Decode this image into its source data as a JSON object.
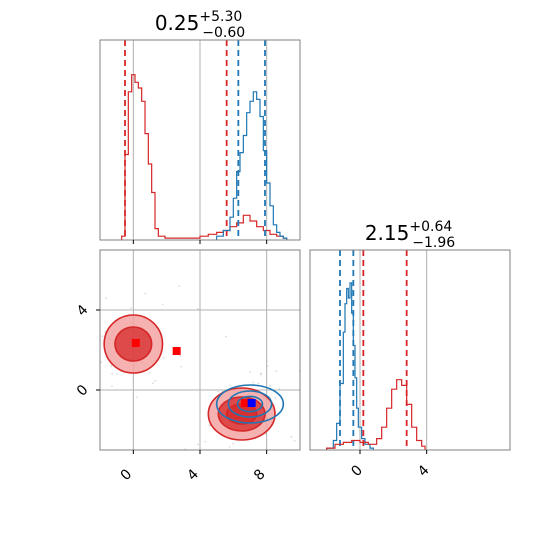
{
  "chart_data": {
    "type": "corner",
    "colors": {
      "red": "#d62728",
      "blue": "#1f77b4",
      "grid": "#b0b0b0",
      "spine": "#808080",
      "red_fill": "#f4a3a3",
      "point_blue": "#0000ff",
      "point_red": "#ff0000"
    },
    "grid": true,
    "panels": [
      {
        "id": "hist-x",
        "type": "step-histogram",
        "title": {
          "main": "0.25",
          "sup": "+5.30",
          "sub": "−0.60"
        },
        "xlim": [
          -2,
          10
        ],
        "xticks": [
          0,
          4,
          8
        ],
        "tick_labels_shown": false,
        "series": [
          {
            "color": "red",
            "bins": [
              [
                -0.7,
                0.02
              ],
              [
                -0.5,
                0.45
              ],
              [
                -0.3,
                0.78
              ],
              [
                -0.1,
                0.87
              ],
              [
                0.1,
                0.83
              ],
              [
                0.3,
                0.8
              ],
              [
                0.5,
                0.73
              ],
              [
                0.7,
                0.56
              ],
              [
                0.9,
                0.4
              ],
              [
                1.1,
                0.25
              ],
              [
                1.3,
                0.06
              ],
              [
                1.5,
                0.02
              ],
              [
                1.9,
                0.01
              ],
              [
                3.0,
                0.01
              ],
              [
                4.0,
                0.02
              ],
              [
                4.5,
                0.03
              ],
              [
                5.0,
                0.04
              ],
              [
                5.4,
                0.05
              ],
              [
                5.8,
                0.07
              ],
              [
                6.2,
                0.09
              ],
              [
                6.6,
                0.13
              ],
              [
                7.0,
                0.1
              ],
              [
                7.4,
                0.07
              ],
              [
                7.8,
                0.05
              ],
              [
                8.2,
                0.03
              ],
              [
                8.6,
                0.02
              ],
              [
                9.0,
                0.01
              ]
            ],
            "quantile_lines": [
              -0.5,
              5.6
            ]
          },
          {
            "color": "blue",
            "bins": [
              [
                5.0,
                0.02
              ],
              [
                5.4,
                0.05
              ],
              [
                5.8,
                0.12
              ],
              [
                6.0,
                0.22
              ],
              [
                6.2,
                0.36
              ],
              [
                6.4,
                0.46
              ],
              [
                6.6,
                0.55
              ],
              [
                6.8,
                0.67
              ],
              [
                7.0,
                0.73
              ],
              [
                7.2,
                0.78
              ],
              [
                7.4,
                0.74
              ],
              [
                7.6,
                0.65
              ],
              [
                7.8,
                0.47
              ],
              [
                8.0,
                0.3
              ],
              [
                8.2,
                0.18
              ],
              [
                8.4,
                0.08
              ],
              [
                8.6,
                0.04
              ],
              [
                8.8,
                0.02
              ],
              [
                9.0,
                0.01
              ]
            ],
            "quantile_lines": [
              6.3,
              7.9
            ]
          }
        ]
      },
      {
        "id": "hist-y",
        "type": "step-histogram",
        "title": {
          "main": "2.15",
          "sup": "+0.64",
          "sub": "−1.96"
        },
        "xlim": [
          -3,
          9
        ],
        "xticks": [
          0,
          4
        ],
        "tick_labels": [
          "0",
          "4"
        ],
        "series": [
          {
            "color": "blue",
            "bins": [
              [
                -2.0,
                0.01
              ],
              [
                -1.6,
                0.05
              ],
              [
                -1.4,
                0.14
              ],
              [
                -1.2,
                0.35
              ],
              [
                -1.0,
                0.62
              ],
              [
                -0.9,
                0.77
              ],
              [
                -0.8,
                0.85
              ],
              [
                -0.7,
                0.8
              ],
              [
                -0.6,
                0.88
              ],
              [
                -0.5,
                0.72
              ],
              [
                -0.4,
                0.55
              ],
              [
                -0.3,
                0.38
              ],
              [
                -0.2,
                0.22
              ],
              [
                -0.1,
                0.12
              ],
              [
                0.1,
                0.06
              ],
              [
                0.3,
                0.03
              ],
              [
                0.6,
                0.01
              ]
            ],
            "quantile_lines": [
              -1.2,
              -0.4
            ]
          },
          {
            "color": "red",
            "bins": [
              [
                -2.0,
                0.01
              ],
              [
                -1.5,
                0.03
              ],
              [
                -1.0,
                0.04
              ],
              [
                -0.5,
                0.05
              ],
              [
                0.0,
                0.04
              ],
              [
                0.5,
                0.03
              ],
              [
                1.0,
                0.06
              ],
              [
                1.3,
                0.12
              ],
              [
                1.6,
                0.22
              ],
              [
                1.9,
                0.32
              ],
              [
                2.2,
                0.37
              ],
              [
                2.5,
                0.34
              ],
              [
                2.8,
                0.24
              ],
              [
                3.1,
                0.12
              ],
              [
                3.4,
                0.05
              ],
              [
                3.7,
                0.02
              ]
            ],
            "quantile_lines": [
              0.2,
              2.8
            ]
          }
        ]
      },
      {
        "id": "joint",
        "type": "contour-scatter",
        "xlim": [
          -2,
          10
        ],
        "ylim": [
          -3,
          7
        ],
        "xticks": [
          0,
          4,
          8
        ],
        "yticks": [
          0,
          4
        ],
        "x_tick_labels": [
          "0",
          "4",
          "8"
        ],
        "y_tick_labels": [
          "0",
          "4"
        ],
        "contours": [
          {
            "color": "red",
            "filled": true,
            "cx": 0.0,
            "cy": 2.3,
            "rx": [
              1.75,
              1.1
            ],
            "ry": [
              1.45,
              0.85
            ]
          },
          {
            "color": "red",
            "filled": true,
            "cx": 6.5,
            "cy": -1.2,
            "rx": [
              2.0,
              1.4,
              0.9
            ],
            "ry": [
              1.3,
              0.85,
              0.5
            ]
          },
          {
            "color": "blue",
            "filled": false,
            "cx": 7.0,
            "cy": -0.7,
            "rx": [
              2.0,
              1.3,
              0.75
            ],
            "ry": [
              0.95,
              0.65,
              0.38
            ]
          }
        ],
        "markers": [
          {
            "x": 0.15,
            "y": 2.35,
            "color": "point_red"
          },
          {
            "x": 2.6,
            "y": 1.95,
            "color": "point_red"
          },
          {
            "x": 6.7,
            "y": -0.65,
            "color": "point_red"
          },
          {
            "x": 7.1,
            "y": -0.65,
            "color": "point_blue"
          }
        ]
      }
    ]
  }
}
